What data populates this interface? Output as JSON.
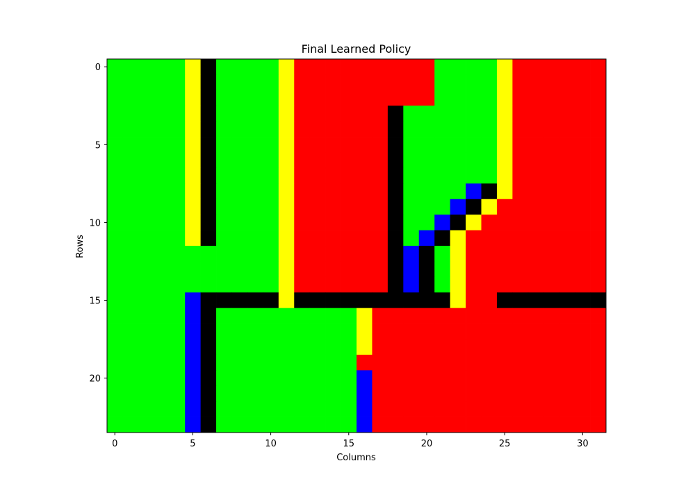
{
  "chart_data": {
    "type": "heatmap",
    "title": "Final Learned Policy",
    "xlabel": "Columns",
    "ylabel": "Rows",
    "n_rows": 24,
    "n_cols": 32,
    "x_ticks": [
      0,
      5,
      10,
      15,
      20,
      25,
      30
    ],
    "y_ticks": [
      0,
      5,
      10,
      15,
      20
    ],
    "palette": {
      "G": "#00ff00",
      "R": "#ff0000",
      "Y": "#ffff00",
      "B": "#0000ff",
      "K": "#000000"
    },
    "grid": [
      "GGGGGYKGGGGYRRRRRRRRRGGGGYRRRRRR",
      "GGGGGYKGGGGYRRRRRRRRRGGGGYRRRRRR",
      "GGGGGYKGGGGYRRRRRRRRRGGGGYRRRRRR",
      "GGGGGYKGGGGYRRRRRRKGGGGGGYRRRRRR",
      "GGGGGYKGGGGYRRRRRRKGGGGGGYRRRRRR",
      "GGGGGYKGGGGYRRRRRRKGGGGGGYRRRRRR",
      "GGGGGYKGGGGYRRRRRRKGGGGGGYRRRRRR",
      "GGGGGYKGGGGYRRRRRRKGGGGGGYRRRRRR",
      "GGGGGYKGGGGYRRRRRRKGGGGBKYRRRRRR",
      "GGGGGYKGGGGYRRRRRRKGGGBKYRRRRRRR",
      "GGGGGYKGGGGYRRRRRRKGGBKYRRRRRRRR",
      "GGGGGYKGGGGYRRRRRRKGBKYRRRRRRRRR",
      "GGGGGGGGGGGYRRRRRRKBKGYRRRRRRRRR",
      "GGGGGGGGGGGYRRRRRRKBKGYRRRRRRRRR",
      "GGGGGGGGGGGYRRRRRRKBKGYRRRRRRRRR",
      "GGGGGBKKKKKYKKKKKKKKKKYRRKKKKKKK",
      "GGGGGBKGGGGGGGGGYRRRRRRRRRRRRRRR",
      "GGGGGBKGGGGGGGGGYRRRRRRRRRRRRRRR",
      "GGGGGBKGGGGGGGGGYRRRRRRRRRRRRRRR",
      "GGGGGBKGGGGGGGGGRRRRRRRRRRRRRRRR",
      "GGGGGBKGGGGGGGGGBRRRRRRRRRRRRRRR",
      "GGGGGBKGGGGGGGGGBRRRRRRRRRRRRRRR",
      "GGGGGBKGGGGGGGGGBRRRRRRRRRRRRRRR",
      "GGGGGBKGGGGGGGGGBRRRRRRRRRRRRRRR"
    ]
  }
}
